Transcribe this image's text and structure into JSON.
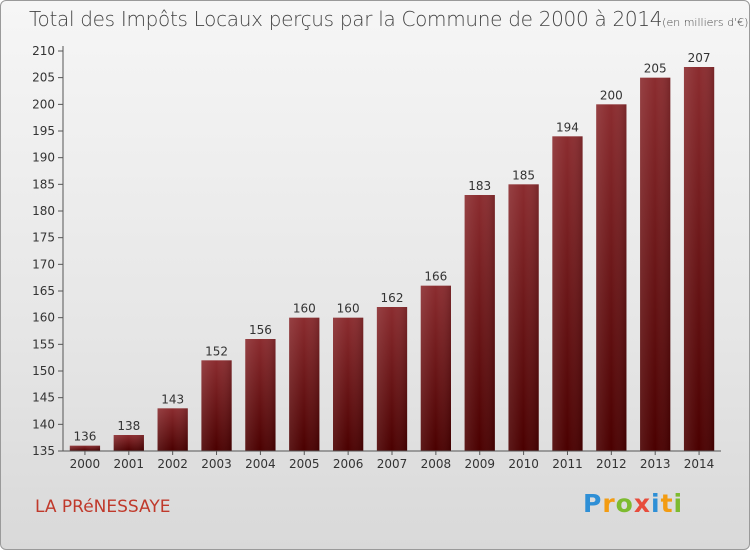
{
  "title": "Total des Impôts Locaux perçus par la Commune de 2000 à 2014",
  "unit": "(en milliers d'€)",
  "commune": "LA PRéNESSAYE",
  "brand": {
    "letters": [
      "P",
      "r",
      "o",
      "x",
      "i",
      "t",
      "i"
    ],
    "colors": [
      "#2e8fd6",
      "#f39c12",
      "#7dbb2f",
      "#e74c3c",
      "#2e8fd6",
      "#f39c12",
      "#7dbb2f"
    ]
  },
  "chart_data": {
    "type": "bar",
    "title": "Total des Impôts Locaux perçus par la Commune de 2000 à 2014",
    "xlabel": "",
    "ylabel": "(en milliers d'€)",
    "categories": [
      "2000",
      "2001",
      "2002",
      "2003",
      "2004",
      "2005",
      "2006",
      "2007",
      "2008",
      "2009",
      "2010",
      "2011",
      "2012",
      "2013",
      "2014"
    ],
    "values": [
      136,
      138,
      143,
      152,
      156,
      160,
      160,
      162,
      166,
      183,
      185,
      194,
      200,
      205,
      207
    ],
    "ylim": [
      135,
      210
    ],
    "yticks": [
      135,
      140,
      145,
      150,
      155,
      160,
      165,
      170,
      175,
      180,
      185,
      190,
      195,
      200,
      205,
      210
    ],
    "grid": false,
    "bar_color_top": "#8b2c2f",
    "bar_color_bottom": "#4a0000"
  }
}
